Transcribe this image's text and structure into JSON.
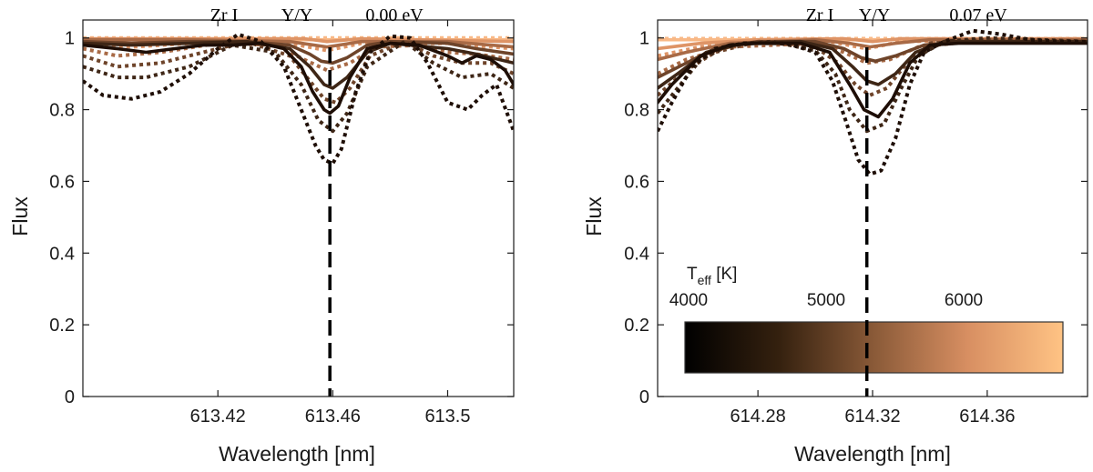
{
  "chart_data": [
    {
      "type": "line",
      "panel": "left",
      "annotations": {
        "element": "Zr I",
        "ratio": "Y/Y",
        "excitation": "0.00 eV"
      },
      "xlabel": "Wavelength [nm]",
      "ylabel": "Flux",
      "xlim": [
        613.373,
        613.523
      ],
      "ylim": [
        0,
        1.05
      ],
      "xticks": [
        613.42,
        613.46,
        613.5
      ],
      "xtick_labels": [
        "613.42",
        "613.46",
        "613.5"
      ],
      "yticks": [
        0,
        0.2,
        0.4,
        0.6,
        0.8,
        1
      ],
      "ytick_labels": [
        "0",
        "0.2",
        "0.4",
        "0.6",
        "0.8",
        "1"
      ],
      "line_center": 613.459,
      "series": [
        {
          "name": "Teff 4000 K solid",
          "teff": 4000,
          "style": "solid",
          "x": [
            613.373,
            613.385,
            613.395,
            613.405,
            613.415,
            613.425,
            613.435,
            613.443,
            613.449,
            613.453,
            613.457,
            613.459,
            613.462,
            613.466,
            613.472,
            613.48,
            613.49,
            613.5,
            613.505,
            613.51,
            613.515,
            613.52,
            613.523
          ],
          "y": [
            0.98,
            0.97,
            0.96,
            0.97,
            0.98,
            0.98,
            0.985,
            0.97,
            0.92,
            0.85,
            0.8,
            0.79,
            0.81,
            0.89,
            0.97,
            0.985,
            0.98,
            0.95,
            0.93,
            0.95,
            0.94,
            0.91,
            0.87
          ]
        },
        {
          "name": "Teff 4500 K solid",
          "teff": 4500,
          "style": "solid",
          "x": [
            613.373,
            613.39,
            613.41,
            613.43,
            613.445,
            613.452,
            613.457,
            613.46,
            613.465,
            613.472,
            613.48,
            613.5,
            613.51,
            613.523
          ],
          "y": [
            0.985,
            0.98,
            0.985,
            0.99,
            0.97,
            0.92,
            0.87,
            0.86,
            0.89,
            0.96,
            0.985,
            0.97,
            0.955,
            0.93
          ]
        },
        {
          "name": "Teff 5000 K solid",
          "teff": 5000,
          "style": "solid",
          "x": [
            613.373,
            613.39,
            613.41,
            613.43,
            613.445,
            613.452,
            613.456,
            613.46,
            613.465,
            613.472,
            613.48,
            613.5,
            613.51,
            613.523
          ],
          "y": [
            0.99,
            0.985,
            0.99,
            0.99,
            0.98,
            0.955,
            0.935,
            0.93,
            0.945,
            0.98,
            0.99,
            0.985,
            0.97,
            0.955
          ]
        },
        {
          "name": "Teff 5500 K solid",
          "teff": 5500,
          "style": "solid",
          "x": [
            613.373,
            613.41,
            613.445,
            613.458,
            613.47,
            613.5,
            613.523
          ],
          "y": [
            0.995,
            0.995,
            0.99,
            0.975,
            0.99,
            0.99,
            0.975
          ]
        },
        {
          "name": "Teff 6000 K solid",
          "teff": 6000,
          "style": "solid",
          "x": [
            613.373,
            613.45,
            613.458,
            613.47,
            613.523
          ],
          "y": [
            0.998,
            0.998,
            0.99,
            0.998,
            0.99
          ]
        },
        {
          "name": "Teff 6300 K solid",
          "teff": 6300,
          "style": "solid",
          "x": [
            613.373,
            613.523
          ],
          "y": [
            0.995,
            0.995
          ]
        },
        {
          "name": "Teff 4000 K dotted",
          "teff": 4000,
          "style": "dotted",
          "x": [
            613.373,
            613.38,
            613.39,
            613.4,
            613.41,
            613.42,
            613.427,
            613.435,
            613.443,
            613.449,
            613.454,
            613.457,
            613.46,
            613.463,
            613.468,
            613.473,
            613.48,
            613.487,
            613.493,
            613.5,
            613.507,
            613.512,
            613.517,
            613.523
          ],
          "y": [
            0.88,
            0.84,
            0.83,
            0.85,
            0.9,
            0.97,
            1.01,
            0.99,
            0.92,
            0.8,
            0.7,
            0.66,
            0.65,
            0.69,
            0.85,
            0.96,
            1.005,
            1.0,
            0.93,
            0.82,
            0.8,
            0.84,
            0.87,
            0.74
          ]
        },
        {
          "name": "Teff 4500 K dotted",
          "teff": 4500,
          "style": "dotted",
          "x": [
            613.373,
            613.385,
            613.395,
            613.41,
            613.425,
            613.44,
            613.449,
            613.455,
            613.46,
            613.465,
            613.472,
            613.485,
            613.495,
            613.505,
            613.515,
            613.523
          ],
          "y": [
            0.92,
            0.89,
            0.89,
            0.92,
            0.98,
            0.96,
            0.87,
            0.77,
            0.74,
            0.79,
            0.92,
            0.99,
            0.93,
            0.89,
            0.9,
            0.86
          ]
        },
        {
          "name": "Teff 5000 K dotted",
          "teff": 5000,
          "style": "dotted",
          "x": [
            613.373,
            613.385,
            613.4,
            613.415,
            613.43,
            613.445,
            613.452,
            613.457,
            613.461,
            613.466,
            613.473,
            613.485,
            613.495,
            613.505,
            613.515,
            613.523
          ],
          "y": [
            0.95,
            0.92,
            0.93,
            0.96,
            0.99,
            0.95,
            0.88,
            0.83,
            0.82,
            0.86,
            0.95,
            0.99,
            0.95,
            0.93,
            0.93,
            0.9
          ]
        },
        {
          "name": "Teff 5500 K dotted",
          "teff": 5500,
          "style": "dotted",
          "x": [
            613.373,
            613.385,
            613.4,
            613.42,
            613.44,
            613.45,
            613.458,
            613.466,
            613.475,
            613.49,
            613.5,
            613.51,
            613.523
          ],
          "y": [
            0.97,
            0.95,
            0.96,
            0.985,
            0.98,
            0.94,
            0.91,
            0.93,
            0.975,
            0.98,
            0.96,
            0.955,
            0.94
          ]
        },
        {
          "name": "Teff 6000 K dotted",
          "teff": 6000,
          "style": "dotted",
          "x": [
            613.373,
            613.39,
            613.42,
            613.445,
            613.458,
            613.47,
            613.5,
            613.523
          ],
          "y": [
            0.985,
            0.975,
            0.99,
            0.985,
            0.965,
            0.985,
            0.985,
            0.97
          ]
        },
        {
          "name": "Teff 6300 K dotted",
          "teff": 6300,
          "style": "dotted",
          "x": [
            613.373,
            613.523
          ],
          "y": [
            1.0,
            1.0
          ]
        }
      ]
    },
    {
      "type": "line",
      "panel": "right",
      "annotations": {
        "element": "Zr I",
        "ratio": "Y/Y",
        "excitation": "0.07 eV"
      },
      "xlabel": "Wavelength [nm]",
      "ylabel": "Flux",
      "xlim": [
        614.245,
        614.395
      ],
      "ylim": [
        0,
        1.05
      ],
      "xticks": [
        614.28,
        614.32,
        614.36
      ],
      "xtick_labels": [
        "614.28",
        "614.32",
        "614.36"
      ],
      "yticks": [
        0,
        0.2,
        0.4,
        0.6,
        0.8,
        1
      ],
      "ytick_labels": [
        "0",
        "0.2",
        "0.4",
        "0.6",
        "0.8",
        "1"
      ],
      "line_center": 614.318,
      "colorbar": {
        "title": "T_eff [K]",
        "min": 4000,
        "max": 6300,
        "ticks": [
          4000,
          5000,
          6000
        ],
        "tick_labels": [
          "4000",
          "5000",
          "6000"
        ]
      },
      "series": [
        {
          "name": "Teff 4000 K solid",
          "teff": 4000,
          "style": "solid",
          "x": [
            614.245,
            614.25,
            614.26,
            614.27,
            614.28,
            614.295,
            614.305,
            614.312,
            614.317,
            614.322,
            614.327,
            614.333,
            614.34,
            614.35,
            614.37,
            614.395
          ],
          "y": [
            0.82,
            0.87,
            0.95,
            0.98,
            0.985,
            0.985,
            0.96,
            0.87,
            0.8,
            0.78,
            0.83,
            0.93,
            0.98,
            0.985,
            0.985,
            0.985
          ]
        },
        {
          "name": "Teff 4500 K solid",
          "teff": 4500,
          "style": "solid",
          "x": [
            614.245,
            614.252,
            614.262,
            614.275,
            614.295,
            614.306,
            614.313,
            614.318,
            614.322,
            614.328,
            614.335,
            614.345,
            614.395
          ],
          "y": [
            0.86,
            0.9,
            0.96,
            0.985,
            0.99,
            0.97,
            0.92,
            0.88,
            0.87,
            0.9,
            0.96,
            0.99,
            0.99
          ]
        },
        {
          "name": "Teff 5000 K solid",
          "teff": 5000,
          "style": "solid",
          "x": [
            614.245,
            614.255,
            614.265,
            614.28,
            614.3,
            614.31,
            614.316,
            614.321,
            614.328,
            614.338,
            614.35,
            614.395
          ],
          "y": [
            0.89,
            0.93,
            0.97,
            0.99,
            0.99,
            0.97,
            0.945,
            0.935,
            0.95,
            0.98,
            0.99,
            0.99
          ]
        },
        {
          "name": "Teff 5500 K solid",
          "teff": 5500,
          "style": "solid",
          "x": [
            614.245,
            614.255,
            614.27,
            614.3,
            614.312,
            614.319,
            614.328,
            614.34,
            614.395
          ],
          "y": [
            0.94,
            0.96,
            0.985,
            0.995,
            0.985,
            0.975,
            0.985,
            0.995,
            0.995
          ]
        },
        {
          "name": "Teff 6000 K solid",
          "teff": 6000,
          "style": "solid",
          "x": [
            614.245,
            614.26,
            614.28,
            614.31,
            614.32,
            614.33,
            614.395
          ],
          "y": [
            0.97,
            0.985,
            0.995,
            0.998,
            0.99,
            0.998,
            0.998
          ]
        },
        {
          "name": "Teff 6300 K solid",
          "teff": 6300,
          "style": "solid",
          "x": [
            614.245,
            614.395
          ],
          "y": [
            0.995,
            0.995
          ]
        },
        {
          "name": "Teff 4000 K dotted",
          "teff": 4000,
          "style": "dotted",
          "x": [
            614.245,
            614.25,
            614.257,
            614.265,
            614.275,
            614.29,
            614.3,
            614.306,
            614.311,
            614.315,
            614.319,
            614.323,
            614.328,
            614.333,
            614.338,
            614.345,
            614.355,
            614.365,
            614.375,
            614.385,
            614.395
          ],
          "y": [
            0.74,
            0.82,
            0.92,
            0.97,
            0.985,
            0.985,
            0.96,
            0.88,
            0.76,
            0.66,
            0.62,
            0.63,
            0.72,
            0.87,
            0.96,
            0.99,
            1.02,
            1.01,
            0.995,
            0.99,
            0.99
          ]
        },
        {
          "name": "Teff 4500 K dotted",
          "teff": 4500,
          "style": "dotted",
          "x": [
            614.245,
            614.252,
            614.26,
            614.27,
            614.285,
            614.3,
            614.307,
            614.312,
            614.318,
            614.324,
            614.33,
            614.336,
            614.345,
            614.36,
            614.395
          ],
          "y": [
            0.79,
            0.86,
            0.94,
            0.98,
            0.99,
            0.965,
            0.9,
            0.8,
            0.74,
            0.76,
            0.86,
            0.95,
            0.99,
            1.0,
            0.99
          ]
        },
        {
          "name": "Teff 5000 K dotted",
          "teff": 5000,
          "style": "dotted",
          "x": [
            614.245,
            614.255,
            614.265,
            614.28,
            614.3,
            614.308,
            614.314,
            614.319,
            614.325,
            614.332,
            614.34,
            614.36,
            614.395
          ],
          "y": [
            0.84,
            0.91,
            0.96,
            0.99,
            0.975,
            0.93,
            0.87,
            0.84,
            0.86,
            0.93,
            0.985,
            0.995,
            0.99
          ]
        },
        {
          "name": "Teff 5500 K dotted",
          "teff": 5500,
          "style": "dotted",
          "x": [
            614.245,
            614.255,
            614.27,
            614.3,
            614.31,
            614.318,
            614.326,
            614.336,
            614.36,
            614.395
          ],
          "y": [
            0.9,
            0.94,
            0.975,
            0.985,
            0.96,
            0.93,
            0.94,
            0.975,
            0.995,
            0.995
          ]
        },
        {
          "name": "Teff 6000 K dotted",
          "teff": 6000,
          "style": "dotted",
          "x": [
            614.245,
            614.26,
            614.28,
            614.305,
            614.318,
            614.33,
            614.36,
            614.395
          ],
          "y": [
            0.95,
            0.975,
            0.99,
            0.99,
            0.97,
            0.99,
            0.995,
            0.995
          ]
        },
        {
          "name": "Teff 6300 K dotted",
          "teff": 6300,
          "style": "dotted",
          "x": [
            614.245,
            614.395
          ],
          "y": [
            0.998,
            0.998
          ]
        }
      ]
    }
  ]
}
